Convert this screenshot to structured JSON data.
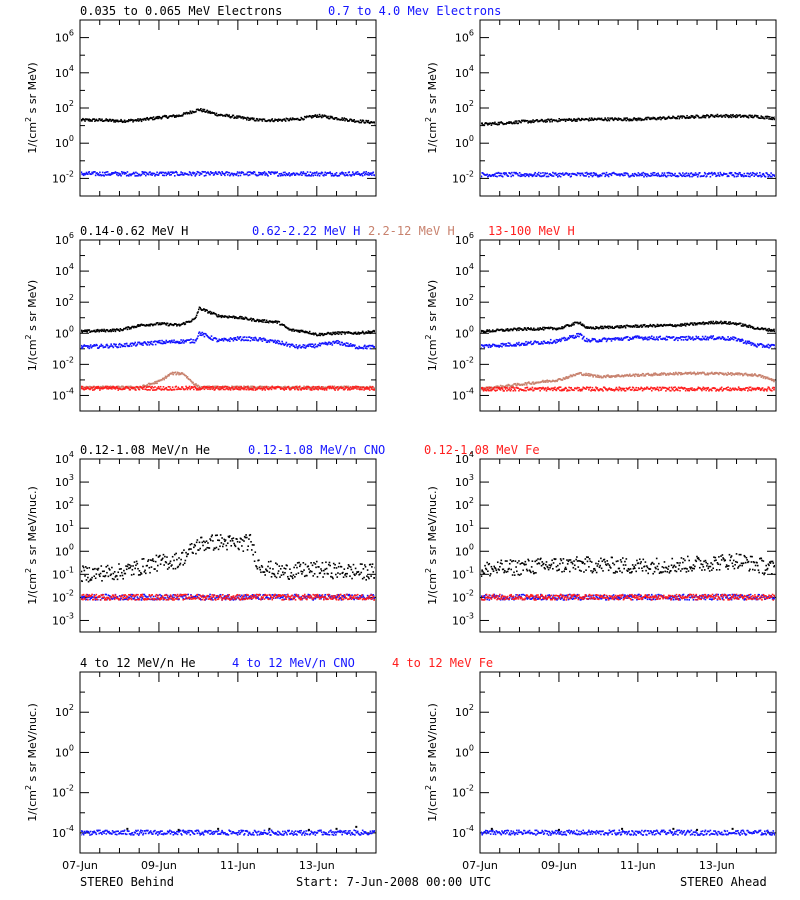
{
  "footer": {
    "left": "STEREO Behind",
    "center": "Start:  7-Jun-2008 00:00 UTC",
    "right": "STEREO Ahead"
  },
  "colors": {
    "black": "#000000",
    "blue": "#1414ff",
    "tan": "#c8826e",
    "red": "#ff1e1e"
  },
  "chart_data": [
    {
      "type": "scatter",
      "row": 1,
      "legend": [
        {
          "name": "0.035 to 0.065 MeV Electrons",
          "color": "black"
        },
        {
          "name": "0.7 to 4.0 Mev Electrons",
          "color": "blue"
        }
      ],
      "ylabel": "1/(cm^2 s sr MeV)",
      "yscale": "log",
      "ylim_exp": [
        -3,
        7
      ],
      "yticks_exp": [
        -2,
        0,
        2,
        4,
        6
      ],
      "xlim_days": [
        0,
        7.5
      ],
      "xtick_labels": [
        "07-Jun",
        "09-Jun",
        "11-Jun",
        "13-Jun"
      ],
      "panels": [
        {
          "instrument": "STEREO Behind",
          "series": [
            {
              "name": "0.035 to 0.065 MeV Electrons",
              "color": "black",
              "x": [
                0,
                0.5,
                1,
                1.5,
                2,
                2.5,
                3,
                3.5,
                4,
                4.5,
                5,
                5.5,
                6,
                6.5,
                7,
                7.5
              ],
              "y_exp": [
                1.3,
                1.3,
                1.25,
                1.3,
                1.45,
                1.55,
                1.9,
                1.6,
                1.45,
                1.3,
                1.3,
                1.35,
                1.55,
                1.4,
                1.25,
                1.15
              ]
            },
            {
              "name": "0.7 to 4.0 Mev Electrons",
              "color": "blue",
              "x": [
                0,
                7.5
              ],
              "y_exp": [
                -1.75,
                -1.75
              ]
            }
          ]
        },
        {
          "instrument": "STEREO Ahead",
          "series": [
            {
              "name": "0.035 to 0.065 MeV Electrons",
              "color": "black",
              "x": [
                0,
                1,
                2,
                3,
                4,
                5,
                6,
                7,
                7.5
              ],
              "y_exp": [
                1.05,
                1.2,
                1.3,
                1.35,
                1.35,
                1.45,
                1.55,
                1.5,
                1.4
              ]
            },
            {
              "name": "0.7 to 4.0 Mev Electrons",
              "color": "blue",
              "x": [
                0,
                7.5
              ],
              "y_exp": [
                -1.8,
                -1.8
              ]
            }
          ]
        }
      ]
    },
    {
      "type": "scatter",
      "row": 2,
      "legend": [
        {
          "name": "0.14-0.62 MeV H",
          "color": "black"
        },
        {
          "name": "0.62-2.22 MeV H",
          "color": "blue"
        },
        {
          "name": "2.2-12 MeV H",
          "color": "tan"
        },
        {
          "name": "13-100 MeV H",
          "color": "red"
        }
      ],
      "ylabel": "1/(cm^2 s sr MeV)",
      "yscale": "log",
      "ylim_exp": [
        -5,
        6
      ],
      "yticks_exp": [
        -4,
        -2,
        0,
        2,
        4,
        6
      ],
      "xlim_days": [
        0,
        7.5
      ],
      "xtick_labels": [
        "07-Jun",
        "09-Jun",
        "11-Jun",
        "13-Jun"
      ],
      "panels": [
        {
          "instrument": "STEREO Behind",
          "series": [
            {
              "name": "0.14-0.62 MeV H",
              "color": "black",
              "x": [
                0,
                0.5,
                1,
                1.5,
                2,
                2.5,
                2.9,
                3,
                3.5,
                4,
                4.5,
                5,
                5.3,
                5.7,
                6,
                6.5,
                7,
                7.5
              ],
              "y_exp": [
                0.1,
                0.15,
                0.2,
                0.5,
                0.6,
                0.5,
                0.9,
                1.6,
                1.1,
                1.0,
                0.8,
                0.7,
                0.2,
                0.1,
                -0.1,
                0.0,
                0.0,
                0.1
              ]
            },
            {
              "name": "0.62-2.22 MeV H",
              "color": "blue",
              "x": [
                0,
                1,
                2,
                2.9,
                3,
                3.5,
                4,
                4.5,
                5,
                5.5,
                6,
                6.5,
                7,
                7.5
              ],
              "y_exp": [
                -0.9,
                -0.8,
                -0.6,
                -0.5,
                0.0,
                -0.5,
                -0.35,
                -0.4,
                -0.6,
                -0.9,
                -0.8,
                -0.6,
                -0.9,
                -0.9
              ]
            },
            {
              "name": "2.2-12 MeV H",
              "color": "tan",
              "x": [
                0,
                1.5,
                2,
                2.3,
                2.6,
                2.8,
                3,
                4,
                5,
                6,
                7,
                7.5
              ],
              "y_exp": [
                -3.5,
                -3.5,
                -3.1,
                -2.6,
                -2.6,
                -3.1,
                -3.5,
                -3.5,
                -3.5,
                -3.5,
                -3.5,
                -3.5
              ]
            },
            {
              "name": "13-100 MeV H",
              "color": "red",
              "x": [
                0,
                7.5
              ],
              "y_exp": [
                -3.55,
                -3.55
              ]
            }
          ]
        },
        {
          "instrument": "STEREO Ahead",
          "series": [
            {
              "name": "0.14-0.62 MeV H",
              "color": "black",
              "x": [
                0,
                1,
                2,
                2.5,
                2.7,
                3,
                4,
                5,
                6,
                6.5,
                7,
                7.5
              ],
              "y_exp": [
                0.1,
                0.25,
                0.3,
                0.7,
                0.3,
                0.35,
                0.45,
                0.5,
                0.7,
                0.6,
                0.3,
                0.15
              ]
            },
            {
              "name": "0.62-2.22 MeV H",
              "color": "blue",
              "x": [
                0,
                1,
                2,
                2.5,
                2.7,
                3,
                4,
                5,
                6,
                6.5,
                7,
                7.5
              ],
              "y_exp": [
                -0.85,
                -0.7,
                -0.5,
                -0.1,
                -0.5,
                -0.45,
                -0.3,
                -0.35,
                -0.3,
                -0.4,
                -0.8,
                -0.85
              ]
            },
            {
              "name": "2.2-12 MeV H",
              "color": "tan",
              "x": [
                0,
                1,
                2,
                2.5,
                3,
                4,
                5,
                6,
                7,
                7.5
              ],
              "y_exp": [
                -3.6,
                -3.3,
                -3.0,
                -2.6,
                -2.8,
                -2.7,
                -2.6,
                -2.6,
                -2.7,
                -3.1
              ]
            },
            {
              "name": "13-100 MeV H",
              "color": "red",
              "x": [
                0,
                7.5
              ],
              "y_exp": [
                -3.6,
                -3.6
              ]
            }
          ]
        }
      ]
    },
    {
      "type": "scatter",
      "row": 3,
      "legend": [
        {
          "name": "0.12-1.08 MeV/n He",
          "color": "black"
        },
        {
          "name": "0.12-1.08 MeV/n CNO",
          "color": "blue"
        },
        {
          "name": "0.12-1.08 MeV Fe",
          "color": "red"
        }
      ],
      "ylabel": "1/(cm^2 s sr MeV/nuc.)",
      "yscale": "log",
      "ylim_exp": [
        -3.5,
        4
      ],
      "yticks_exp": [
        -3,
        -2,
        -1,
        0,
        1,
        2,
        3,
        4
      ],
      "xlim_days": [
        0,
        7.5
      ],
      "xtick_labels": [
        "07-Jun",
        "09-Jun",
        "11-Jun",
        "13-Jun"
      ],
      "panels": [
        {
          "instrument": "STEREO Behind",
          "series": [
            {
              "name": "0.12-1.08 MeV/n He",
              "color": "black",
              "x": [
                0,
                1,
                1.5,
                2,
                2.5,
                3,
                3.5,
                4,
                4.3,
                4.5,
                5,
                6,
                7,
                7.5
              ],
              "y_exp": [
                -1,
                -0.9,
                -0.7,
                -0.5,
                -0.4,
                0.3,
                0.4,
                0.3,
                0.4,
                -0.6,
                -0.9,
                -0.8,
                -0.9,
                -0.9
              ]
            },
            {
              "name": "0.12-1.08 MeV/n CNO",
              "color": "blue",
              "x": [
                0,
                7.5
              ],
              "y_exp": [
                -2,
                -2
              ]
            },
            {
              "name": "0.12-1.08 MeV Fe",
              "color": "red",
              "x": [
                0,
                7.5
              ],
              "y_exp": [
                -2,
                -2
              ]
            }
          ]
        },
        {
          "instrument": "STEREO Ahead",
          "series": [
            {
              "name": "0.12-1.08 MeV/n He",
              "color": "black",
              "x": [
                0,
                1,
                2,
                3,
                4,
                5,
                6,
                6.5,
                7,
                7.5
              ],
              "y_exp": [
                -0.8,
                -0.7,
                -0.6,
                -0.6,
                -0.65,
                -0.6,
                -0.5,
                -0.4,
                -0.6,
                -0.8
              ]
            },
            {
              "name": "0.12-1.08 MeV/n CNO",
              "color": "blue",
              "x": [
                0,
                7.5
              ],
              "y_exp": [
                -2,
                -2
              ]
            },
            {
              "name": "0.12-1.08 MeV Fe",
              "color": "red",
              "x": [
                0,
                7.5
              ],
              "y_exp": [
                -2,
                -2
              ]
            }
          ]
        }
      ]
    },
    {
      "type": "scatter",
      "row": 4,
      "legend": [
        {
          "name": "4 to 12 MeV/n He",
          "color": "black"
        },
        {
          "name": "4 to 12 MeV/n CNO",
          "color": "blue"
        },
        {
          "name": "4 to 12 MeV Fe",
          "color": "red"
        }
      ],
      "ylabel": "1/(cm^2 s sr MeV/nuc.)",
      "yscale": "log",
      "ylim_exp": [
        -5,
        4
      ],
      "yticks_exp": [
        -4,
        -2,
        0,
        2
      ],
      "xlim_days": [
        0,
        7.5
      ],
      "xtick_labels": [
        "07-Jun",
        "09-Jun",
        "11-Jun",
        "13-Jun"
      ],
      "panels": [
        {
          "instrument": "STEREO Behind",
          "series": [
            {
              "name": "4 to 12 MeV/n CNO",
              "color": "blue",
              "x": [
                0,
                7.5
              ],
              "y_exp": [
                -4,
                -4
              ]
            },
            {
              "name": "4 to 12 MeV/n He",
              "color": "black",
              "x": [
                1.2,
                2.5,
                3.5,
                4.8,
                5.8,
                6.5,
                7.0
              ],
              "y_exp": [
                -3.8,
                -3.85,
                -3.8,
                -3.8,
                -3.85,
                -3.8,
                -3.7
              ]
            }
          ]
        },
        {
          "instrument": "STEREO Ahead",
          "series": [
            {
              "name": "4 to 12 MeV/n CNO",
              "color": "blue",
              "x": [
                0,
                7.5
              ],
              "y_exp": [
                -4,
                -4
              ]
            },
            {
              "name": "4 to 12 MeV/n He",
              "color": "black",
              "x": [
                0.3,
                2.0,
                3.6,
                4.9,
                5.5,
                6.4
              ],
              "y_exp": [
                -3.8,
                -3.85,
                -3.8,
                -3.8,
                -3.85,
                -3.8
              ]
            }
          ]
        }
      ]
    }
  ]
}
